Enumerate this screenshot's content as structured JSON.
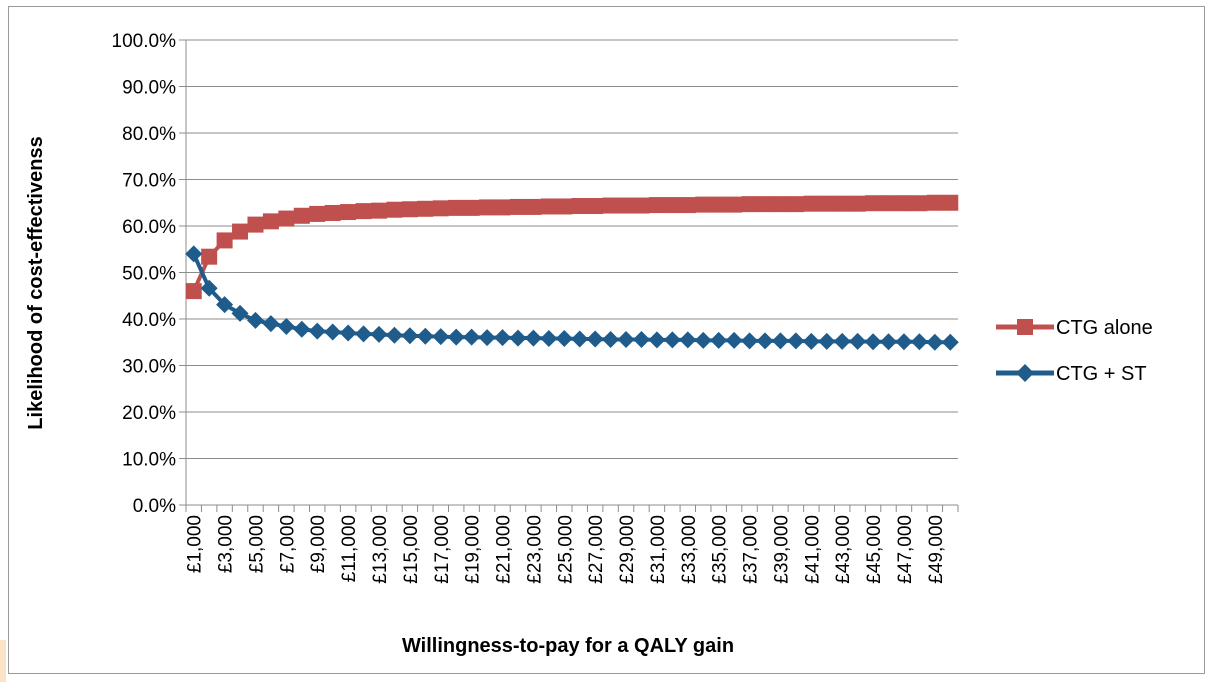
{
  "chart_data": {
    "type": "line",
    "title": "",
    "xlabel": "Willingness-to-pay for a QALY gain",
    "ylabel": "Likelihood of cost-effectivenss",
    "ylim": [
      0,
      100
    ],
    "y_tick_labels": [
      "0.0%",
      "10.0%",
      "20.0%",
      "30.0%",
      "40.0%",
      "50.0%",
      "60.0%",
      "70.0%",
      "80.0%",
      "90.0%",
      "100.0%"
    ],
    "x": [
      1000,
      2000,
      3000,
      4000,
      5000,
      6000,
      7000,
      8000,
      9000,
      10000,
      11000,
      12000,
      13000,
      14000,
      15000,
      16000,
      17000,
      18000,
      19000,
      20000,
      21000,
      22000,
      23000,
      24000,
      25000,
      26000,
      27000,
      28000,
      29000,
      30000,
      31000,
      32000,
      33000,
      34000,
      35000,
      36000,
      37000,
      38000,
      39000,
      40000,
      41000,
      42000,
      43000,
      44000,
      45000,
      46000,
      47000,
      48000,
      49000,
      50000
    ],
    "x_tick_labels": [
      "£1,000",
      "£3,000",
      "£5,000",
      "£7,000",
      "£9,000",
      "£11,000",
      "£13,000",
      "£15,000",
      "£17,000",
      "£19,000",
      "£21,000",
      "£23,000",
      "£25,000",
      "£27,000",
      "£29,000",
      "£31,000",
      "£33,000",
      "£35,000",
      "£37,000",
      "£39,000",
      "£41,000",
      "£43,000",
      "£45,000",
      "£47,000",
      "£49,000"
    ],
    "grid": "horizontal",
    "legend_position": "right",
    "series": [
      {
        "name": "CTG alone",
        "color": "#c0504d",
        "marker": "square",
        "values": [
          46.0,
          53.4,
          56.9,
          58.8,
          60.3,
          61.0,
          61.6,
          62.2,
          62.6,
          62.8,
          63.0,
          63.2,
          63.3,
          63.5,
          63.6,
          63.7,
          63.8,
          63.9,
          63.9,
          64.0,
          64.0,
          64.1,
          64.1,
          64.2,
          64.2,
          64.3,
          64.3,
          64.4,
          64.4,
          64.4,
          64.5,
          64.5,
          64.5,
          64.6,
          64.6,
          64.6,
          64.7,
          64.7,
          64.7,
          64.7,
          64.8,
          64.8,
          64.8,
          64.8,
          64.9,
          64.9,
          64.9,
          64.9,
          65.0,
          65.0
        ]
      },
      {
        "name": "CTG + ST",
        "color": "#1f5c8b",
        "marker": "diamond",
        "values": [
          54.0,
          46.6,
          43.1,
          41.2,
          39.7,
          39.0,
          38.4,
          37.8,
          37.4,
          37.2,
          37.0,
          36.8,
          36.7,
          36.5,
          36.4,
          36.3,
          36.2,
          36.1,
          36.1,
          36.0,
          36.0,
          35.9,
          35.9,
          35.8,
          35.8,
          35.7,
          35.7,
          35.6,
          35.6,
          35.6,
          35.5,
          35.5,
          35.5,
          35.4,
          35.4,
          35.4,
          35.3,
          35.3,
          35.3,
          35.3,
          35.2,
          35.2,
          35.2,
          35.2,
          35.1,
          35.1,
          35.1,
          35.1,
          35.0,
          35.0
        ]
      }
    ]
  }
}
